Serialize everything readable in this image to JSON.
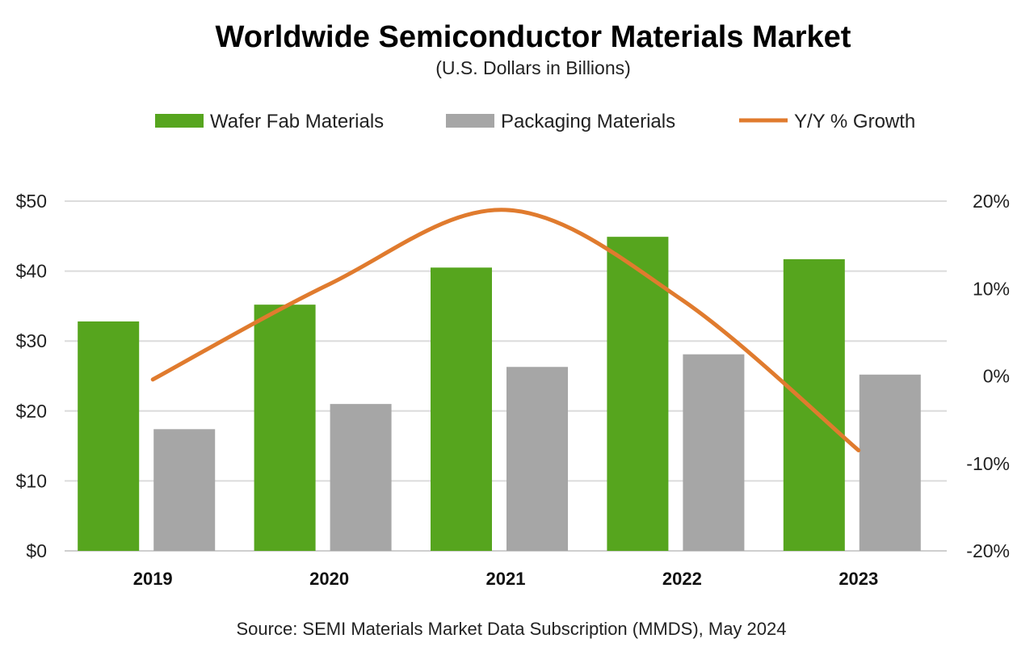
{
  "chart_data": {
    "type": "bar",
    "title": "Worldwide Semiconductor Materials Market",
    "subtitle": "(U.S. Dollars in Billions)",
    "source": "Source:  SEMI Materials Market Data Subscription (MMDS), May 2024",
    "categories": [
      "2019",
      "2020",
      "2021",
      "2022",
      "2023"
    ],
    "series": [
      {
        "name": "Wafer Fab Materials",
        "type": "bar",
        "axis": "left",
        "color": "#56a51e",
        "values": [
          32.8,
          35.2,
          40.5,
          44.9,
          41.7
        ]
      },
      {
        "name": "Packaging  Materials",
        "type": "bar",
        "axis": "left",
        "color": "#a6a6a6",
        "values": [
          17.4,
          21.0,
          26.3,
          28.1,
          25.2
        ]
      },
      {
        "name": "Y/Y % Growth",
        "type": "line",
        "axis": "right",
        "color": "#e07b2e",
        "smooth": true,
        "values": [
          -0.4,
          10.5,
          19.0,
          8.7,
          -8.5
        ]
      }
    ],
    "y_left": {
      "ylim": [
        0,
        50
      ],
      "ticks": [
        "$0",
        "$10",
        "$20",
        "$30",
        "$40",
        "$50"
      ],
      "tick_values": [
        0,
        10,
        20,
        30,
        40,
        50
      ]
    },
    "y_right": {
      "ylim": [
        -20,
        20
      ],
      "ticks": [
        "-20%",
        "-10%",
        "0%",
        "10%",
        "20%"
      ],
      "tick_values": [
        -20,
        -10,
        0,
        10,
        20
      ]
    },
    "grid": true,
    "legend_placement": "top"
  }
}
